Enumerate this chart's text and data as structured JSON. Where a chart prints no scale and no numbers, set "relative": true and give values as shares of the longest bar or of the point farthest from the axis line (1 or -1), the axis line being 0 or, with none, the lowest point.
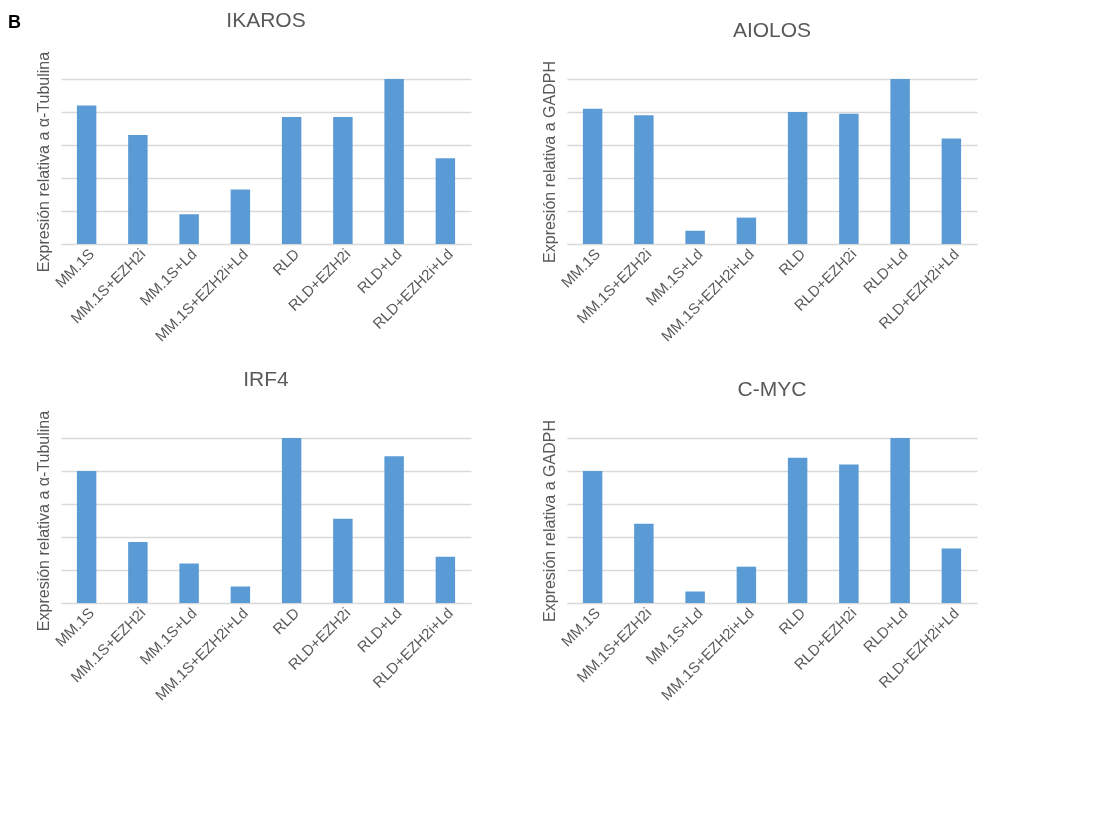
{
  "chart_data": [
    {
      "type": "bar",
      "title": "IKAROS",
      "ylabel": "Expresión relativa a α-Tubulina",
      "relative": true,
      "grid": "y",
      "annotations": [
        "B"
      ],
      "categories": [
        "MM.1S",
        "MM.1S+EZH2i",
        "MM.1S+Ld",
        "MM.1S+EZH2i+Ld",
        "RLD",
        "RLD+EZH2i",
        "RLD+Ld",
        "RLD+EZH2i+Ld"
      ],
      "series": [
        {
          "color": "#5b9bd5",
          "values": [
            0.84,
            0.66,
            0.18,
            0.33,
            0.77,
            0.77,
            1,
            0.52
          ]
        }
      ]
    },
    {
      "type": "bar",
      "title": "AIOLOS",
      "ylabel": "Expresión relativa a GADPH",
      "relative": true,
      "grid": "y",
      "categories": [
        "MM.1S",
        "MM.1S+EZH2i",
        "MM.1S+Ld",
        "MM.1S+EZH2i+Ld",
        "RLD",
        "RLD+EZH2i",
        "RLD+Ld",
        "RLD+EZH2i+Ld"
      ],
      "series": [
        {
          "color": "#5b9bd5",
          "values": [
            0.82,
            0.78,
            0.08,
            0.16,
            0.8,
            0.79,
            1,
            0.64
          ]
        }
      ]
    },
    {
      "type": "bar",
      "title": "IRF4",
      "ylabel": "Expresión relativa a α-Tubulina",
      "relative": true,
      "grid": "y",
      "categories": [
        "MM.1S",
        "MM.1S+EZH2i",
        "MM.1S+Ld",
        "MM.1S+EZH2i+Ld",
        "RLD",
        "RLD+EZH2i",
        "RLD+Ld",
        "RLD+EZH2i+Ld"
      ],
      "series": [
        {
          "color": "#5b9bd5",
          "values": [
            0.8,
            0.37,
            0.24,
            0.1,
            1,
            0.51,
            0.89,
            0.28
          ]
        }
      ]
    },
    {
      "type": "bar",
      "title": "C-MYC",
      "ylabel": "Expresión relativa a GADPH",
      "relative": true,
      "grid": "y",
      "categories": [
        "MM.1S",
        "MM.1S+EZH2i",
        "MM.1S+Ld",
        "MM.1S+EZH2i+Ld",
        "RLD",
        "RLD+EZH2i",
        "RLD+Ld",
        "RLD+EZH2i+Ld"
      ],
      "series": [
        {
          "color": "#5b9bd5",
          "values": [
            0.8,
            0.48,
            0.07,
            0.22,
            0.88,
            0.84,
            1,
            0.33
          ]
        }
      ]
    }
  ]
}
